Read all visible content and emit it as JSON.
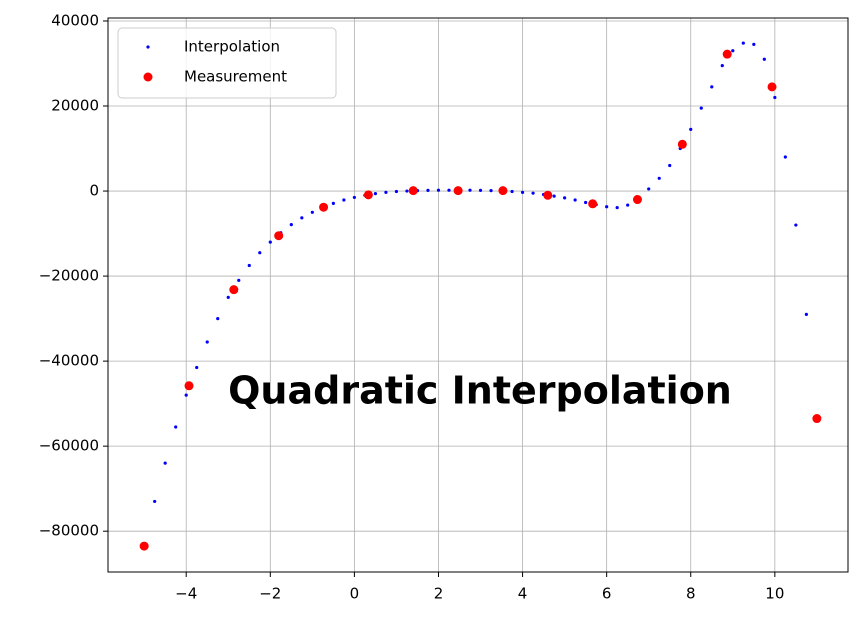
{
  "chart_data": {
    "type": "scatter",
    "annotation": "Quadratic Interpolation",
    "xlim": [
      -5.86,
      11.74
    ],
    "ylim": [
      -89600,
      40700
    ],
    "xticks": [
      {
        "value": -4,
        "label": "−4"
      },
      {
        "value": -2,
        "label": "−2"
      },
      0,
      2,
      4,
      6,
      8,
      10
    ],
    "yticks": [
      {
        "value": -80000,
        "label": "−80000"
      },
      {
        "value": -60000,
        "label": "−60000"
      },
      {
        "value": -40000,
        "label": "−40000"
      },
      {
        "value": -20000,
        "label": "−20000"
      },
      0,
      20000,
      40000
    ],
    "grid": true,
    "legend": "upper left",
    "series": [
      {
        "name": "Interpolation",
        "color": "#0000ff",
        "marker_size": 1.6,
        "x": [
          -5,
          -4.75,
          -4.5,
          -4.25,
          -4,
          -3.75,
          -3.5,
          -3.25,
          -3,
          -2.75,
          -2.5,
          -2.25,
          -2,
          -1.75,
          -1.5,
          -1.25,
          -1,
          -0.75,
          -0.5,
          -0.25,
          0,
          0.25,
          0.5,
          0.75,
          1,
          1.25,
          1.5,
          1.75,
          2,
          2.25,
          2.5,
          2.75,
          3,
          3.25,
          3.5,
          3.75,
          4,
          4.25,
          4.5,
          4.75,
          5,
          5.25,
          5.5,
          5.75,
          6,
          6.25,
          6.5,
          6.75,
          7,
          7.25,
          7.5,
          7.75,
          8,
          8.25,
          8.5,
          8.75,
          9,
          9.25,
          9.5,
          9.75,
          10,
          10.25,
          10.5,
          10.75,
          11
        ],
        "values": [
          -83000,
          -73000,
          -64000,
          -55500,
          -48000,
          -41500,
          -35500,
          -30000,
          -25000,
          -21000,
          -17500,
          -14500,
          -12000,
          -9800,
          -7900,
          -6300,
          -5000,
          -3900,
          -2900,
          -2100,
          -1500,
          -1000,
          -600,
          -300,
          -100,
          0,
          100,
          150,
          200,
          200,
          200,
          200,
          150,
          100,
          50,
          -100,
          -300,
          -500,
          -800,
          -1200,
          -1600,
          -2100,
          -2700,
          -3200,
          -3700,
          -3900,
          -3300,
          -1800,
          500,
          3000,
          6000,
          10000,
          14500,
          19500,
          24500,
          29500,
          33000,
          34800,
          34500,
          31000,
          22000,
          8000,
          -8000,
          -29000,
          -53500
        ]
      },
      {
        "name": "Measurement",
        "color": "#ff0000",
        "marker_size": 4.5,
        "x": [
          -5,
          -3.933,
          -2.867,
          -1.8,
          -0.733,
          0.333,
          1.4,
          2.467,
          3.533,
          4.6,
          5.667,
          6.733,
          7.8,
          8.867,
          9.933,
          11
        ],
        "values": [
          -83500,
          -45800,
          -23200,
          -10500,
          -3800,
          -900,
          100,
          100,
          100,
          -1000,
          -3000,
          -2000,
          11000,
          32200,
          24500,
          -53500
        ]
      }
    ]
  }
}
